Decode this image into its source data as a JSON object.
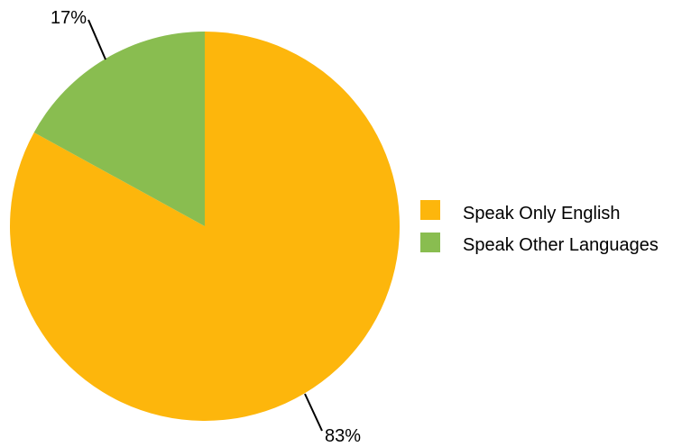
{
  "chart_data": {
    "type": "pie",
    "categories": [
      "Speak Only English",
      "Speak Other Languages"
    ],
    "values": [
      83,
      17
    ],
    "data_labels": [
      "83%",
      "17%"
    ],
    "colors": [
      "#FDB60C",
      "#89BD50"
    ],
    "legend": {
      "position": "right",
      "entries": [
        "Speak Only English",
        "Speak Other Languages"
      ]
    }
  }
}
